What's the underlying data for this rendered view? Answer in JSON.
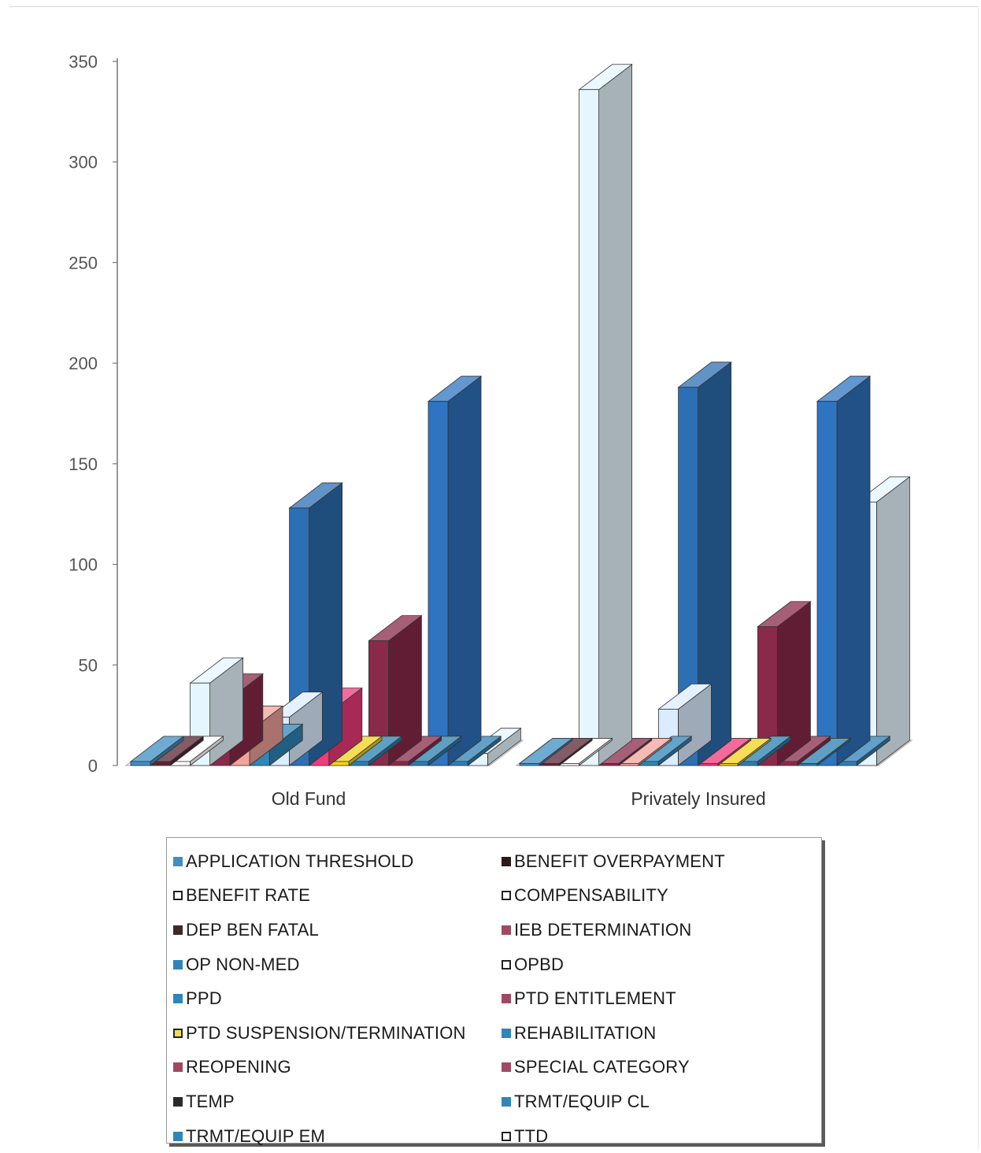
{
  "chart_data": {
    "type": "bar",
    "categories": [
      "Old Fund",
      "Privately Insured"
    ],
    "yticks": [
      "0",
      "50",
      "100",
      "150",
      "200",
      "250",
      "300",
      "350"
    ],
    "ylim": [
      0,
      350
    ],
    "series": [
      {
        "name": "APPLICATION THRESHOLD",
        "color": "#3f8ec4",
        "values": [
          2,
          1
        ]
      },
      {
        "name": "BENEFIT OVERPAYMENT",
        "color": "#5a2535",
        "values": [
          2,
          1
        ]
      },
      {
        "name": "BENEFIT RATE",
        "color": "#ffffff",
        "values": [
          2,
          1
        ]
      },
      {
        "name": "COMPENSABILITY",
        "color": "#e6f6ff",
        "values": [
          41,
          336
        ]
      },
      {
        "name": "DEP BEN FATAL",
        "color": "#8a2a4a",
        "values": [
          33,
          1
        ]
      },
      {
        "name": "IEB DETERMINATION",
        "color": "#f2a39a",
        "values": [
          17,
          1
        ]
      },
      {
        "name": "OP NON-MED",
        "color": "#2f86b8",
        "values": [
          8,
          2
        ]
      },
      {
        "name": "OPBD",
        "color": "#dcecff",
        "values": [
          24,
          28
        ]
      },
      {
        "name": "PPD",
        "color": "#2d6fb3",
        "values": [
          128,
          188
        ]
      },
      {
        "name": "PTD ENTITLEMENT",
        "color": "#f03a7a",
        "values": [
          26,
          1
        ]
      },
      {
        "name": "PTD SUSPENSION/TERMINATION",
        "color": "#f2d21e",
        "values": [
          2,
          1
        ]
      },
      {
        "name": "REHABILITATION",
        "color": "#2a7fb0",
        "values": [
          2,
          2
        ]
      },
      {
        "name": "REOPENING",
        "color": "#8a2a4a",
        "values": [
          62,
          69
        ]
      },
      {
        "name": "SPECIAL CATEGORY",
        "color": "#8a2a4a",
        "values": [
          2,
          2
        ]
      },
      {
        "name": "TEMP",
        "color": "#2a7fb0",
        "values": [
          2,
          1
        ]
      },
      {
        "name": "TRMT/EQUIP CL",
        "color": "#2f74c0",
        "values": [
          181,
          181
        ]
      },
      {
        "name": "TRMT/EQUIP EM",
        "color": "#2d80b8",
        "values": [
          2,
          2
        ]
      },
      {
        "name": "TTD",
        "color": "#e6f6ff",
        "values": [
          6,
          131
        ]
      }
    ],
    "legend": {
      "position": "bottom",
      "items": [
        {
          "label": "APPLICATION THRESHOLD",
          "swatch": "#3f8ec4"
        },
        {
          "label": "BENEFIT OVERPAYMENT",
          "swatch": "#2a1a1a"
        },
        {
          "label": "BENEFIT RATE",
          "swatch": "#ffffff"
        },
        {
          "label": "COMPENSABILITY",
          "swatch": "#ffffff"
        },
        {
          "label": "DEP BEN FATAL",
          "swatch": "#3a2a2a"
        },
        {
          "label": "IEB DETERMINATION",
          "swatch": "#a04a62"
        },
        {
          "label": "OP NON-MED",
          "swatch": "#2f86b8"
        },
        {
          "label": "OPBD",
          "swatch": "#ffffff"
        },
        {
          "label": "PPD",
          "swatch": "#2f86b8"
        },
        {
          "label": "PTD ENTITLEMENT",
          "swatch": "#a04a62"
        },
        {
          "label": "PTD SUSPENSION/TERMINATION",
          "swatch": "#f2e04a"
        },
        {
          "label": "REHABILITATION",
          "swatch": "#2f86b8"
        },
        {
          "label": "REOPENING",
          "swatch": "#a04a62"
        },
        {
          "label": "SPECIAL CATEGORY",
          "swatch": "#a04a62"
        },
        {
          "label": "TEMP",
          "swatch": "#2a2a2a"
        },
        {
          "label": "TRMT/EQUIP CL",
          "swatch": "#2f86b8"
        },
        {
          "label": "TRMT/EQUIP EM",
          "swatch": "#2f86b8"
        },
        {
          "label": "TTD",
          "swatch": "#ffffff"
        }
      ]
    },
    "grid": false
  }
}
